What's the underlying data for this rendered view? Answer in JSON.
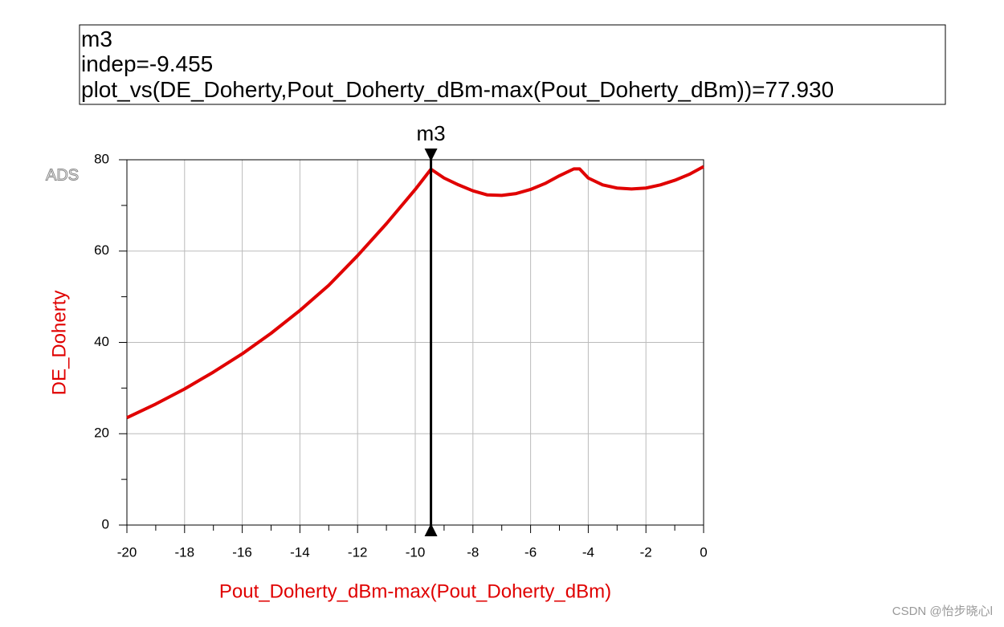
{
  "chart_data": {
    "type": "line",
    "watermark": "ADS",
    "credit": "CSDN @怡步晓心l",
    "xlabel": "Pout_Doherty_dBm-max(Pout_Doherty_dBm)",
    "ylabel": "DE_Doherty",
    "x": [
      -20,
      -19,
      -18,
      -17,
      -16,
      -15,
      -14,
      -13,
      -12,
      -11,
      -10,
      -9.455,
      -9,
      -8.5,
      -8,
      -7.5,
      -7,
      -6.5,
      -6,
      -5.5,
      -5,
      -4.5,
      -4.3,
      -4,
      -3.5,
      -3,
      -2.5,
      -2,
      -1.5,
      -1,
      -0.5,
      0
    ],
    "series": [
      {
        "name": "DE_Doherty",
        "color": "#e00000",
        "values": [
          23.5,
          26.5,
          29.8,
          33.5,
          37.5,
          42,
          47,
          52.5,
          59,
          66,
          73.5,
          77.93,
          76,
          74.5,
          73.2,
          72.3,
          72.2,
          72.6,
          73.5,
          74.8,
          76.5,
          78,
          78,
          76,
          74.5,
          73.8,
          73.6,
          73.8,
          74.5,
          75.5,
          76.8,
          78.5
        ]
      }
    ],
    "xlim": [
      -20,
      0
    ],
    "ylim": [
      0,
      80
    ],
    "xticks": [
      -20,
      -18,
      -16,
      -14,
      -12,
      -10,
      -8,
      -6,
      -4,
      -2,
      0
    ],
    "yticks": [
      0,
      20,
      40,
      60,
      80
    ],
    "xminorticks": [
      -19,
      -17,
      -15,
      -13,
      -11,
      -9,
      -7,
      -5,
      -3,
      -1
    ],
    "yminorticks": [
      10,
      30,
      50,
      70
    ],
    "grid": true,
    "marker": {
      "name": "m3",
      "x": -9.455,
      "y": 77.93,
      "readout": [
        "indep=-9.455",
        "plot_vs(DE_Doherty,Pout_Doherty_dBm-max(Pout_Doherty_dBm))=77.930"
      ]
    }
  }
}
